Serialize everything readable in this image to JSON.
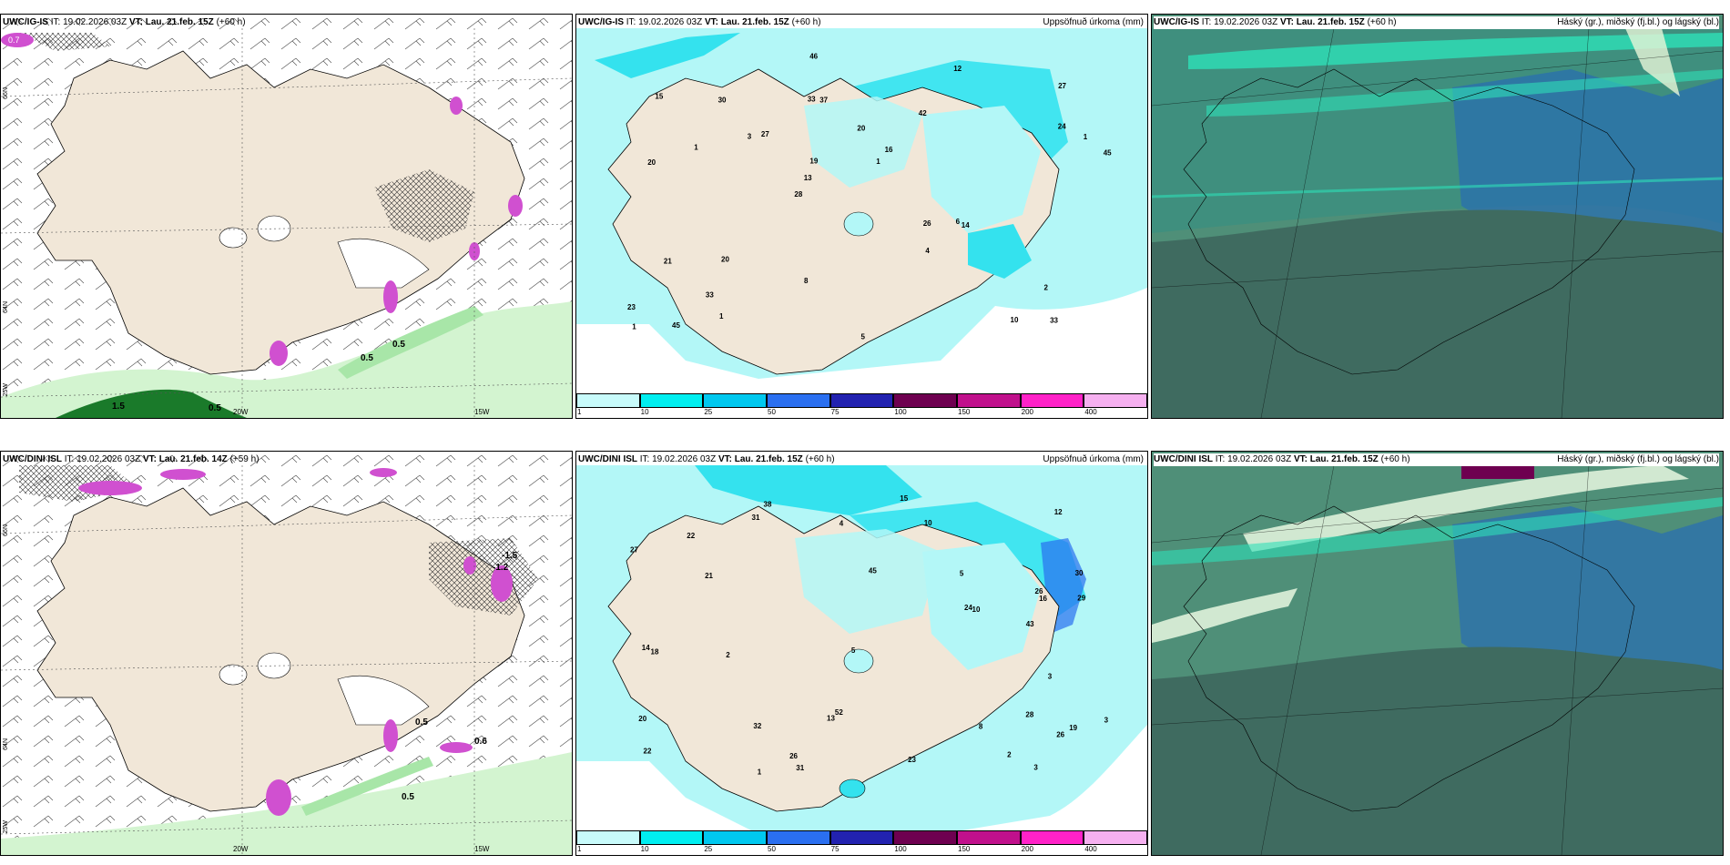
{
  "panels": [
    {
      "id": "tl",
      "model": "UWC/IG-IS",
      "it_label": "IT:",
      "it": "19.02.2026 03Z",
      "vt_label": "VT:",
      "vt": "Lau. 21.feb. 15Z",
      "lead": "(+60 h)",
      "title_right": "",
      "lon_labels": [
        "20W",
        "15W"
      ],
      "lat_labels": [
        "66N",
        "64N",
        "25W"
      ],
      "contour_labels": [
        "0.5",
        "0.5",
        "0.5",
        "1.5",
        "0.7"
      ]
    },
    {
      "id": "tm",
      "model": "UWC/IG-IS",
      "it_label": "IT:",
      "it": "19.02.2026 03Z",
      "vt_label": "VT:",
      "vt": "Lau. 21.feb. 15Z",
      "lead": "(+60 h)",
      "title_right": "Uppsöfnuð úrkoma (mm)",
      "precip_values": [
        "33",
        "20",
        "27",
        "28",
        "42",
        "45",
        "33",
        "20",
        "21",
        "27",
        "23",
        "33",
        "37",
        "16",
        "14",
        "15",
        "46",
        "45",
        "26",
        "24",
        "13",
        "8",
        "19",
        "30",
        "12",
        "20",
        "10",
        "2",
        "6",
        "5",
        "3",
        "1",
        "4",
        "1",
        "1",
        "1",
        "1"
      ]
    },
    {
      "id": "tr",
      "model": "UWC/IG-IS",
      "it_label": "IT:",
      "it": "19.02.2026 03Z",
      "vt_label": "VT:",
      "vt": "Lau. 21.feb. 15Z",
      "lead": "(+60 h)",
      "title_right": "Háský (gr.), miðský (fj.bl.) og lágský (bl.)"
    },
    {
      "id": "bl",
      "model": "UWC/DINI ISL",
      "it_label": "IT:",
      "it": "19.02.2026 03Z",
      "vt_label": "VT:",
      "vt": "Lau. 21.feb. 14Z",
      "lead": "(+59 h)",
      "title_right": "",
      "lon_labels": [
        "20W",
        "15W"
      ],
      "lat_labels": [
        "66N",
        "64N",
        "25W"
      ],
      "contour_labels": [
        "-1.5",
        "-1.2",
        "0.5",
        "0.6",
        "0.5"
      ]
    },
    {
      "id": "bm",
      "model": "UWC/DINI ISL",
      "it_label": "IT:",
      "it": "19.02.2026 03Z",
      "vt_label": "VT:",
      "vt": "Lau. 21.feb. 15Z",
      "lead": "(+60 h)",
      "title_right": "Uppsöfnuð úrkoma (mm)",
      "precip_values": [
        "28",
        "30",
        "19",
        "45",
        "22",
        "38",
        "26",
        "32",
        "12",
        "21",
        "29",
        "27",
        "43",
        "31",
        "20",
        "22",
        "26",
        "31",
        "52",
        "16",
        "14",
        "18",
        "23",
        "24",
        "26",
        "13",
        "15",
        "10",
        "5",
        "3",
        "2",
        "8",
        "1",
        "5",
        "3",
        "2",
        "10",
        "4",
        "3"
      ]
    },
    {
      "id": "br",
      "model": "UWC/DINI ISL",
      "it_label": "IT:",
      "it": "19.02.2026 03Z",
      "vt_label": "VT:",
      "vt": "Lau. 21.feb. 15Z",
      "lead": "(+60 h)",
      "title_right": "Háský (gr.), miðský (fj.bl.) og lágský (bl.)"
    }
  ],
  "precip_legend": {
    "labels": [
      "1",
      "10",
      "25",
      "50",
      "75",
      "100",
      "150",
      "200",
      "400"
    ],
    "colors": [
      "#c8fbfb",
      "#00eef0",
      "#00c8ef",
      "#2a6ff0",
      "#2222b0",
      "#6e0050",
      "#c0108c",
      "#ff22c8",
      "#f6b0f0"
    ]
  },
  "colors": {
    "land": "#f1e7d8",
    "sea_precip": "#b3f7f7",
    "precip_heavy": "#34e2ee",
    "cloud_high": "#2ee0b8",
    "cloud_mid": "#2a6fb0",
    "cloud_low": "#3f6b60",
    "cloud_base": "#4f8f78",
    "green_light": "#c8f2c8",
    "green_dark": "#0a5a1a",
    "magenta": "#d050d0"
  }
}
